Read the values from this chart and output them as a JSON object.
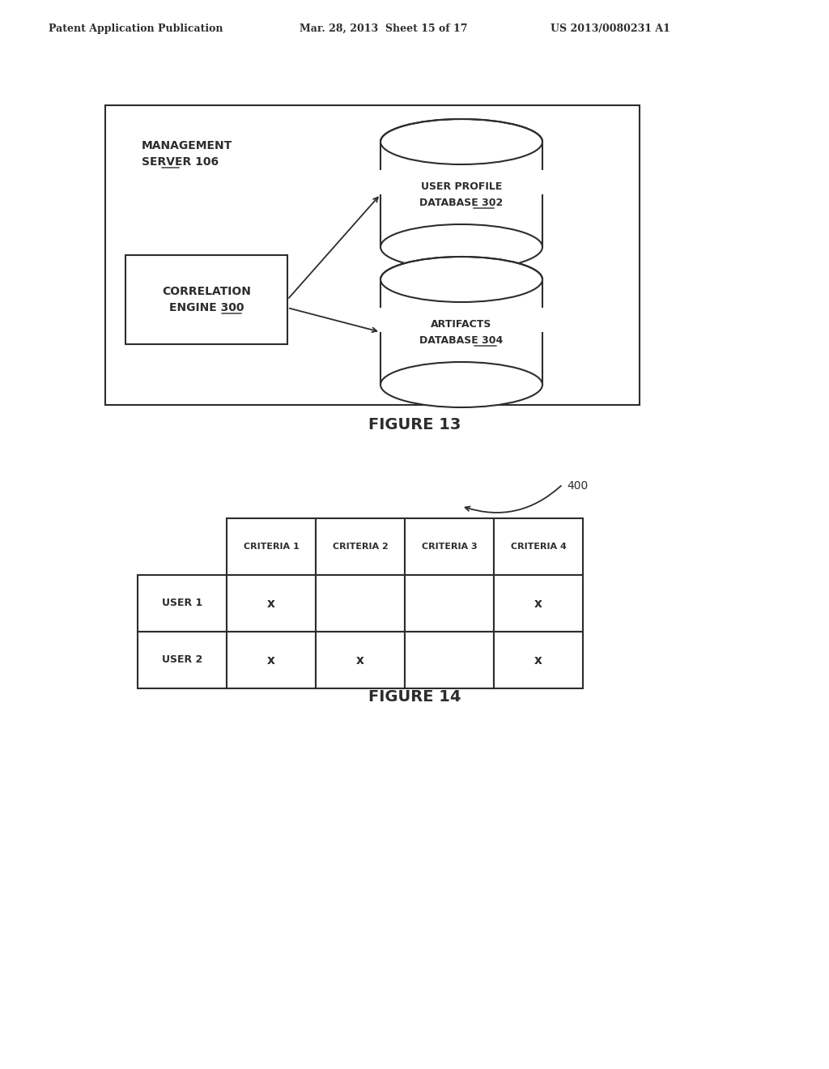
{
  "bg_color": "#ffffff",
  "header_text": [
    "Patent Application Publication",
    "Mar. 28, 2013  Sheet 15 of 17",
    "US 2013/0080231 A1"
  ],
  "fig13_title": "FIGURE 13",
  "fig14_title": "FIGURE 14",
  "mgmt_server_label": [
    "MANAGEMENT",
    "SERVER 106"
  ],
  "mgmt_server_underline": "106",
  "correlation_engine_label": [
    "CORRELATION",
    "ENGINE 300"
  ],
  "correlation_engine_underline": "300",
  "db1_label": [
    "USER PROFILE",
    "DATABASE 302"
  ],
  "db1_underline": "302",
  "db2_label": [
    "ARTIFACTS",
    "DATABASE 304"
  ],
  "db2_underline": "304",
  "label_400": "400",
  "table_col_headers": [
    "CRITERIA 1",
    "CRITERIA 2",
    "CRITERIA 3",
    "CRITERIA 4"
  ],
  "table_row_headers": [
    "USER 1",
    "USER 2"
  ],
  "table_data": [
    [
      "x",
      "",
      "",
      "x"
    ],
    [
      "x",
      "x",
      "",
      "x"
    ]
  ],
  "font_color": "#2d2d2d",
  "line_color": "#2d2d2d"
}
